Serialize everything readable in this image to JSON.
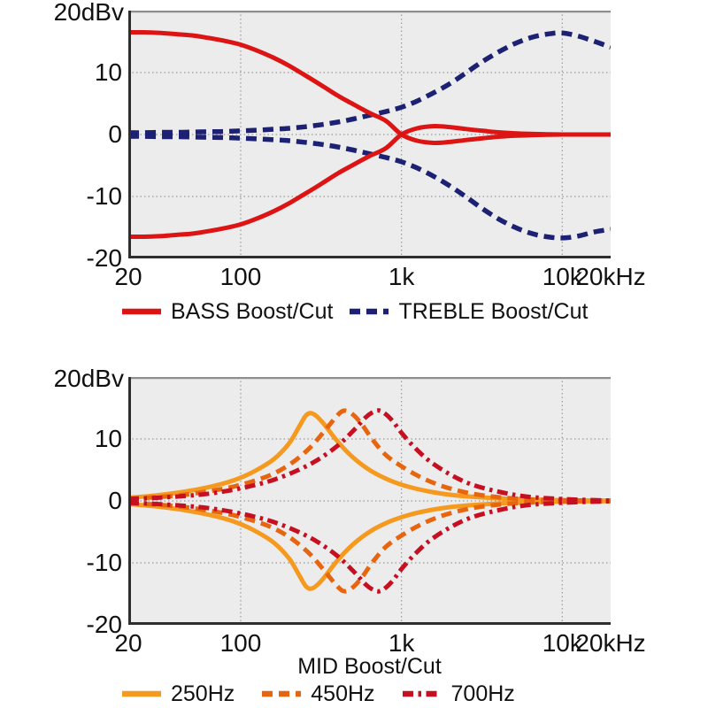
{
  "page": {
    "background": "#ffffff"
  },
  "chart_data": [
    {
      "type": "line",
      "name": "bass-treble-response",
      "y_axis_top_label": "20dBv",
      "xlabel": "",
      "x_scale": "log",
      "xlim": [
        20,
        20000
      ],
      "ylim": [
        -20,
        20
      ],
      "grid": true,
      "legend_position": "bottom",
      "x_ticks": [
        {
          "value": 20,
          "label": "20"
        },
        {
          "value": 100,
          "label": "100"
        },
        {
          "value": 1000,
          "label": "1k"
        },
        {
          "value": 10000,
          "label": "10k"
        },
        {
          "value": 20000,
          "label": "20kHz"
        }
      ],
      "y_ticks": [
        {
          "value": 10,
          "label": "10"
        },
        {
          "value": 0,
          "label": "0"
        },
        {
          "value": -10,
          "label": "-10"
        },
        {
          "value": -20,
          "label": "-20"
        }
      ],
      "x_gridlines": [
        100,
        1000,
        10000
      ],
      "y_gridlines": [
        10,
        0,
        -10
      ],
      "style": {
        "plot_bg": "#ececec",
        "grid_color": "#999999",
        "frame_dark": "#2e2e2e",
        "frame_light": "#8f8f8f",
        "text_color": "#111111"
      },
      "series": [
        {
          "name": "TREBLE Boost",
          "color": "#1c2173",
          "line_style": "dashed",
          "width": 5.5,
          "x": [
            20,
            25,
            32,
            40,
            50,
            63,
            80,
            100,
            125,
            160,
            200,
            250,
            320,
            400,
            500,
            630,
            800,
            1000,
            1250,
            1600,
            2000,
            2500,
            3200,
            4000,
            5000,
            6300,
            8000,
            10000,
            12500,
            16000,
            20000
          ],
          "y": [
            0.3,
            0.3,
            0.35,
            0.35,
            0.4,
            0.45,
            0.5,
            0.6,
            0.7,
            0.85,
            1.0,
            1.25,
            1.6,
            2.0,
            2.5,
            3.1,
            3.7,
            4.4,
            5.4,
            6.8,
            8.2,
            9.9,
            11.8,
            13.3,
            14.6,
            15.6,
            16.2,
            16.4,
            15.9,
            15.0,
            14.1
          ]
        },
        {
          "name": "TREBLE Cut",
          "color": "#1c2173",
          "line_style": "dashed",
          "width": 5.5,
          "x": [
            20,
            25,
            32,
            40,
            50,
            63,
            80,
            100,
            125,
            160,
            200,
            250,
            320,
            400,
            500,
            630,
            800,
            1000,
            1250,
            1600,
            2000,
            2500,
            3200,
            4000,
            5000,
            6300,
            8000,
            10000,
            12500,
            16000,
            20000
          ],
          "y": [
            -0.3,
            -0.3,
            -0.35,
            -0.35,
            -0.4,
            -0.45,
            -0.5,
            -0.6,
            -0.7,
            -0.85,
            -1.0,
            -1.25,
            -1.6,
            -2.0,
            -2.5,
            -3.1,
            -3.7,
            -4.4,
            -5.4,
            -6.8,
            -8.3,
            -10.0,
            -12.0,
            -13.6,
            -14.9,
            -15.9,
            -16.5,
            -16.7,
            -16.4,
            -15.7,
            -15.3
          ]
        },
        {
          "name": "BASS Boost",
          "color": "#dc1414",
          "line_style": "solid",
          "width": 5,
          "x": [
            20,
            25,
            32,
            40,
            50,
            63,
            80,
            100,
            125,
            160,
            200,
            250,
            320,
            400,
            500,
            630,
            800,
            1000,
            1250,
            1600,
            2000,
            2500,
            3200,
            4000,
            5000,
            6300,
            8000,
            10000,
            12500,
            16000,
            20000
          ],
          "y": [
            16.5,
            16.5,
            16.4,
            16.2,
            16.0,
            15.6,
            15.1,
            14.5,
            13.6,
            12.4,
            11.1,
            9.6,
            7.9,
            6.3,
            4.9,
            3.5,
            2.2,
            0.0,
            -1.0,
            -1.35,
            -1.2,
            -0.9,
            -0.6,
            -0.35,
            -0.2,
            -0.1,
            -0.05,
            0,
            0,
            0,
            0
          ]
        },
        {
          "name": "BASS Cut",
          "color": "#dc1414",
          "line_style": "solid",
          "width": 5,
          "x": [
            20,
            25,
            32,
            40,
            50,
            63,
            80,
            100,
            125,
            160,
            200,
            250,
            320,
            400,
            500,
            630,
            800,
            1000,
            1250,
            1600,
            2000,
            2500,
            3200,
            4000,
            5000,
            6300,
            8000,
            10000,
            12500,
            16000,
            20000
          ],
          "y": [
            -16.5,
            -16.5,
            -16.4,
            -16.2,
            -16.0,
            -15.6,
            -15.1,
            -14.5,
            -13.6,
            -12.4,
            -11.1,
            -9.6,
            -7.9,
            -6.3,
            -4.9,
            -3.5,
            -2.2,
            0.0,
            1.0,
            1.35,
            1.2,
            0.9,
            0.6,
            0.35,
            0.2,
            0.1,
            0.05,
            0,
            0,
            0,
            0
          ]
        }
      ],
      "legend": [
        {
          "label": "BASS Boost/Cut",
          "color": "#dc1414",
          "line_style": "solid"
        },
        {
          "label": "TREBLE Boost/Cut",
          "color": "#1c2173",
          "line_style": "dashed"
        }
      ]
    },
    {
      "type": "line",
      "name": "mid-response",
      "y_axis_top_label": "20dBv",
      "xlabel": "MID Boost/Cut",
      "x_scale": "log",
      "xlim": [
        20,
        20000
      ],
      "ylim": [
        -20,
        20
      ],
      "grid": true,
      "legend_position": "bottom",
      "x_ticks": [
        {
          "value": 20,
          "label": "20"
        },
        {
          "value": 100,
          "label": "100"
        },
        {
          "value": 1000,
          "label": "1k"
        },
        {
          "value": 10000,
          "label": "10k"
        },
        {
          "value": 20000,
          "label": "20kHz"
        }
      ],
      "y_ticks": [
        {
          "value": 10,
          "label": "10"
        },
        {
          "value": 0,
          "label": "0"
        },
        {
          "value": -10,
          "label": "-10"
        },
        {
          "value": -20,
          "label": "-20"
        }
      ],
      "x_gridlines": [
        100,
        1000,
        10000
      ],
      "y_gridlines": [
        10,
        0,
        -10
      ],
      "style": {
        "plot_bg": "#ececec",
        "grid_color": "#999999",
        "frame_dark": "#2e2e2e",
        "frame_light": "#8f8f8f",
        "text_color": "#111111"
      },
      "series": [
        {
          "name": "250Hz Boost",
          "color": "#f5991f",
          "line_style": "solid",
          "width": 5,
          "x": [
            20,
            30,
            45,
            65,
            90,
            120,
            160,
            200,
            230,
            255,
            280,
            320,
            400,
            500,
            650,
            850,
            1100,
            1500,
            2000,
            3000,
            5000,
            10000,
            20000
          ],
          "y": [
            0.5,
            0.9,
            1.5,
            2.3,
            3.3,
            4.7,
            6.7,
            9.3,
            11.9,
            13.8,
            14.1,
            12.8,
            9.6,
            7.0,
            4.8,
            3.3,
            2.3,
            1.5,
            1.0,
            0.6,
            0.3,
            0.1,
            0.05
          ]
        },
        {
          "name": "250Hz Cut",
          "color": "#f5991f",
          "line_style": "solid",
          "width": 5,
          "x": [
            20,
            30,
            45,
            65,
            90,
            120,
            160,
            200,
            230,
            255,
            280,
            320,
            400,
            500,
            650,
            850,
            1100,
            1500,
            2000,
            3000,
            5000,
            10000,
            20000
          ],
          "y": [
            -0.5,
            -0.9,
            -1.5,
            -2.3,
            -3.3,
            -4.7,
            -6.7,
            -9.3,
            -11.9,
            -13.8,
            -14.1,
            -12.8,
            -9.6,
            -7.0,
            -4.8,
            -3.3,
            -2.3,
            -1.5,
            -1.0,
            -0.6,
            -0.3,
            -0.1,
            -0.05
          ]
        },
        {
          "name": "450Hz Boost",
          "color": "#e8650f",
          "line_style": "dashed",
          "width": 5,
          "x": [
            20,
            30,
            45,
            65,
            90,
            120,
            160,
            210,
            270,
            330,
            390,
            430,
            470,
            520,
            580,
            660,
            800,
            1000,
            1300,
            1700,
            2300,
            3200,
            5000,
            10000,
            20000
          ],
          "y": [
            0.4,
            0.6,
            1.0,
            1.6,
            2.3,
            3.2,
            4.4,
            6.2,
            8.6,
            11.2,
            13.5,
            14.5,
            14.4,
            13.5,
            12.0,
            9.9,
            7.4,
            5.6,
            3.9,
            2.6,
            1.6,
            0.9,
            0.4,
            0.1,
            0.05
          ]
        },
        {
          "name": "450Hz Cut",
          "color": "#e8650f",
          "line_style": "dashed",
          "width": 5,
          "x": [
            20,
            30,
            45,
            65,
            90,
            120,
            160,
            210,
            270,
            330,
            390,
            430,
            470,
            520,
            580,
            660,
            800,
            1000,
            1300,
            1700,
            2300,
            3200,
            5000,
            10000,
            20000
          ],
          "y": [
            -0.4,
            -0.6,
            -1.0,
            -1.6,
            -2.3,
            -3.2,
            -4.4,
            -6.2,
            -8.6,
            -11.2,
            -13.5,
            -14.5,
            -14.4,
            -13.5,
            -12.0,
            -9.9,
            -7.4,
            -5.6,
            -3.9,
            -2.6,
            -1.6,
            -0.9,
            -0.4,
            -0.1,
            -0.05
          ]
        },
        {
          "name": "700Hz Boost",
          "color": "#c61022",
          "line_style": "dashdot",
          "width": 5,
          "x": [
            20,
            30,
            45,
            65,
            90,
            120,
            160,
            220,
            300,
            400,
            500,
            600,
            660,
            720,
            790,
            880,
            1000,
            1200,
            1500,
            2000,
            2700,
            4000,
            6000,
            10000,
            20000
          ],
          "y": [
            0.3,
            0.5,
            0.8,
            1.2,
            1.8,
            2.5,
            3.4,
            4.8,
            6.6,
            8.9,
            11.3,
            13.5,
            14.3,
            14.6,
            14.1,
            12.9,
            11.0,
            8.7,
            6.4,
            4.3,
            2.7,
            1.5,
            0.7,
            0.3,
            0.05
          ]
        },
        {
          "name": "700Hz Cut",
          "color": "#c61022",
          "line_style": "dashdot",
          "width": 5,
          "x": [
            20,
            30,
            45,
            65,
            90,
            120,
            160,
            220,
            300,
            400,
            500,
            600,
            660,
            720,
            790,
            880,
            1000,
            1200,
            1500,
            2000,
            2700,
            4000,
            6000,
            10000,
            20000
          ],
          "y": [
            -0.3,
            -0.5,
            -0.8,
            -1.2,
            -1.8,
            -2.5,
            -3.4,
            -4.8,
            -6.6,
            -8.9,
            -11.3,
            -13.5,
            -14.3,
            -14.6,
            -14.1,
            -12.9,
            -11.0,
            -8.7,
            -6.4,
            -4.3,
            -2.7,
            -1.5,
            -0.7,
            -0.3,
            -0.05
          ]
        }
      ],
      "legend": [
        {
          "label": "250Hz",
          "color": "#f5991f",
          "line_style": "solid"
        },
        {
          "label": "450Hz",
          "color": "#e8650f",
          "line_style": "dashed"
        },
        {
          "label": "700Hz",
          "color": "#c61022",
          "line_style": "dashdot"
        }
      ]
    }
  ]
}
